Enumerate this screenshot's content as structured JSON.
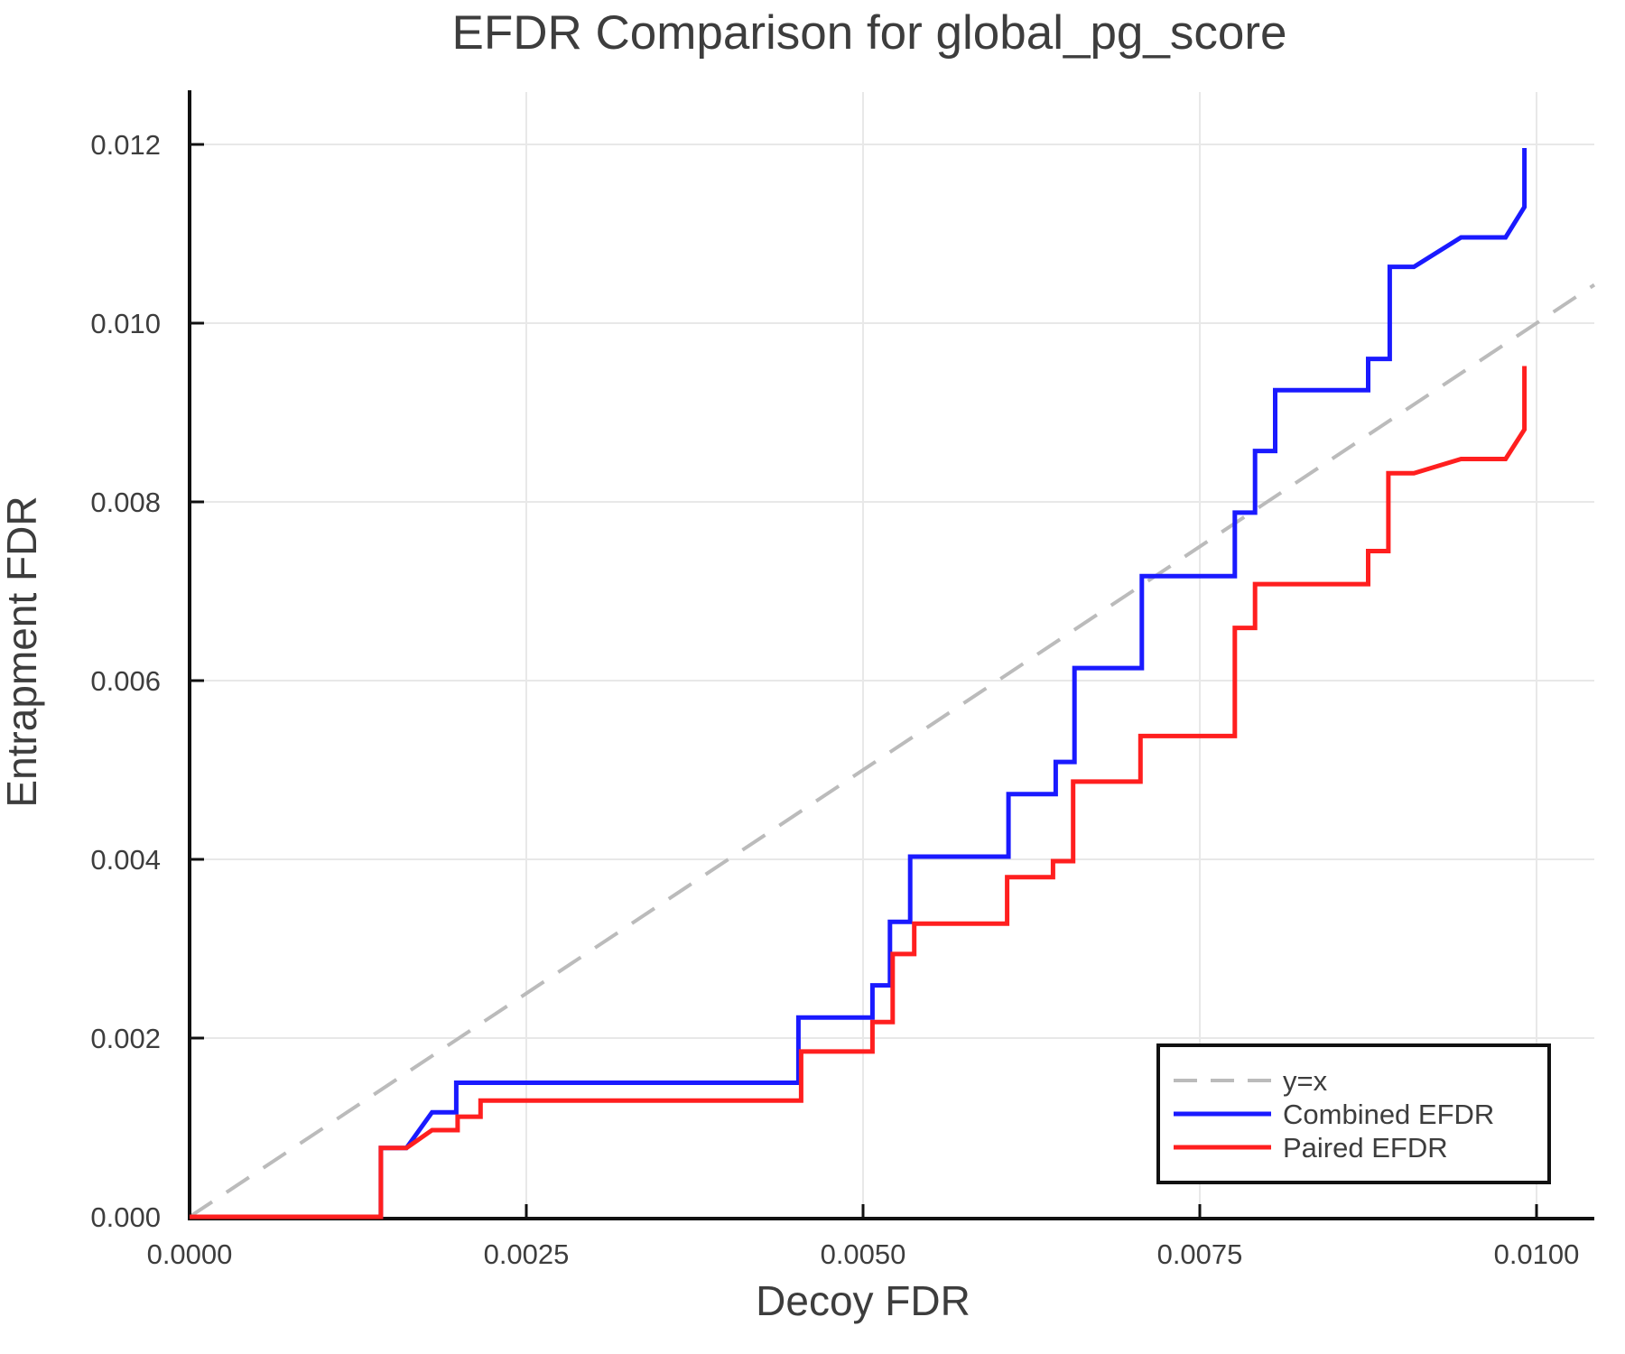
{
  "title": "EFDR Comparison for global_pg_score",
  "chart_data": {
    "type": "line",
    "title": "EFDR Comparison for global_pg_score",
    "xlabel": "Decoy FDR",
    "ylabel": "Entrapment FDR",
    "xlim": [
      0,
      0.010429
    ],
    "ylim": [
      0,
      0.012586
    ],
    "grid": true,
    "legend_position": "lower right",
    "colors": {
      "combined": "#1a1aff",
      "paired": "#ff1f1f",
      "identity": "#bbbbbb",
      "gridline": "#e8e8e8",
      "spine": "#111111",
      "text": "#3d3d3d"
    },
    "x_ticks": [
      {
        "v": 0.0,
        "label": "0.0000"
      },
      {
        "v": 0.0025,
        "label": "0.0025"
      },
      {
        "v": 0.005,
        "label": "0.0050"
      },
      {
        "v": 0.0075,
        "label": "0.0075"
      },
      {
        "v": 0.01,
        "label": "0.0100"
      }
    ],
    "y_ticks": [
      {
        "v": 0.0,
        "label": "0.000"
      },
      {
        "v": 0.002,
        "label": "0.002"
      },
      {
        "v": 0.004,
        "label": "0.004"
      },
      {
        "v": 0.006,
        "label": "0.006"
      },
      {
        "v": 0.008,
        "label": "0.008"
      },
      {
        "v": 0.01,
        "label": "0.010"
      },
      {
        "v": 0.012,
        "label": "0.012"
      }
    ],
    "reference_line": {
      "name": "y=x",
      "dash": true,
      "points": [
        [
          0,
          0
        ],
        [
          0.010429,
          0.010429
        ]
      ]
    },
    "series": [
      {
        "name": "Combined EFDR",
        "color_key": "combined",
        "points": [
          [
            0,
            0
          ],
          [
            0.00142,
            0
          ],
          [
            0.00142,
            0.00077
          ],
          [
            0.00161,
            0.00077
          ],
          [
            0.0018,
            0.00117
          ],
          [
            0.00198,
            0.00117
          ],
          [
            0.00198,
            0.0015
          ],
          [
            0.00452,
            0.0015
          ],
          [
            0.00452,
            0.00223
          ],
          [
            0.00507,
            0.00223
          ],
          [
            0.00507,
            0.00259
          ],
          [
            0.0052,
            0.00259
          ],
          [
            0.0052,
            0.0033
          ],
          [
            0.00535,
            0.0033
          ],
          [
            0.00535,
            0.00403
          ],
          [
            0.00608,
            0.00403
          ],
          [
            0.00608,
            0.00473
          ],
          [
            0.00643,
            0.00473
          ],
          [
            0.00643,
            0.00509
          ],
          [
            0.00657,
            0.00509
          ],
          [
            0.00657,
            0.00614
          ],
          [
            0.00707,
            0.00614
          ],
          [
            0.00707,
            0.00717
          ],
          [
            0.00776,
            0.00717
          ],
          [
            0.00776,
            0.00788
          ],
          [
            0.00791,
            0.00788
          ],
          [
            0.00791,
            0.00857
          ],
          [
            0.00806,
            0.00857
          ],
          [
            0.00806,
            0.00925
          ],
          [
            0.00875,
            0.00925
          ],
          [
            0.00875,
            0.0096
          ],
          [
            0.00891,
            0.0096
          ],
          [
            0.00891,
            0.01063
          ],
          [
            0.00909,
            0.01063
          ],
          [
            0.00944,
            0.01096
          ],
          [
            0.00977,
            0.01096
          ],
          [
            0.00991,
            0.0113
          ],
          [
            0.00991,
            0.01196
          ]
        ]
      },
      {
        "name": "Paired EFDR",
        "color_key": "paired",
        "points": [
          [
            0,
            0
          ],
          [
            0.00142,
            0
          ],
          [
            0.00142,
            0.00077
          ],
          [
            0.00161,
            0.00077
          ],
          [
            0.0018,
            0.00097
          ],
          [
            0.00199,
            0.00097
          ],
          [
            0.00199,
            0.00112
          ],
          [
            0.00216,
            0.00112
          ],
          [
            0.00216,
            0.0013
          ],
          [
            0.00454,
            0.0013
          ],
          [
            0.00454,
            0.00185
          ],
          [
            0.00507,
            0.00185
          ],
          [
            0.00507,
            0.00218
          ],
          [
            0.00522,
            0.00218
          ],
          [
            0.00522,
            0.00294
          ],
          [
            0.00538,
            0.00294
          ],
          [
            0.00538,
            0.00328
          ],
          [
            0.00607,
            0.00328
          ],
          [
            0.00607,
            0.0038
          ],
          [
            0.00641,
            0.0038
          ],
          [
            0.00641,
            0.00398
          ],
          [
            0.00656,
            0.00398
          ],
          [
            0.00656,
            0.00487
          ],
          [
            0.00706,
            0.00487
          ],
          [
            0.00706,
            0.00538
          ],
          [
            0.00776,
            0.00538
          ],
          [
            0.00776,
            0.00659
          ],
          [
            0.00791,
            0.00659
          ],
          [
            0.00791,
            0.00708
          ],
          [
            0.00875,
            0.00708
          ],
          [
            0.00875,
            0.00745
          ],
          [
            0.0089,
            0.00745
          ],
          [
            0.0089,
            0.00832
          ],
          [
            0.00909,
            0.00832
          ],
          [
            0.00944,
            0.00848
          ],
          [
            0.00977,
            0.00848
          ],
          [
            0.00991,
            0.00881
          ],
          [
            0.00991,
            0.00952
          ]
        ]
      }
    ],
    "legend": {
      "items": [
        {
          "label": "y=x",
          "color_key": "identity",
          "dash": true
        },
        {
          "label": "Combined EFDR",
          "color_key": "combined",
          "dash": false
        },
        {
          "label": "Paired EFDR",
          "color_key": "paired",
          "dash": false
        }
      ]
    }
  }
}
